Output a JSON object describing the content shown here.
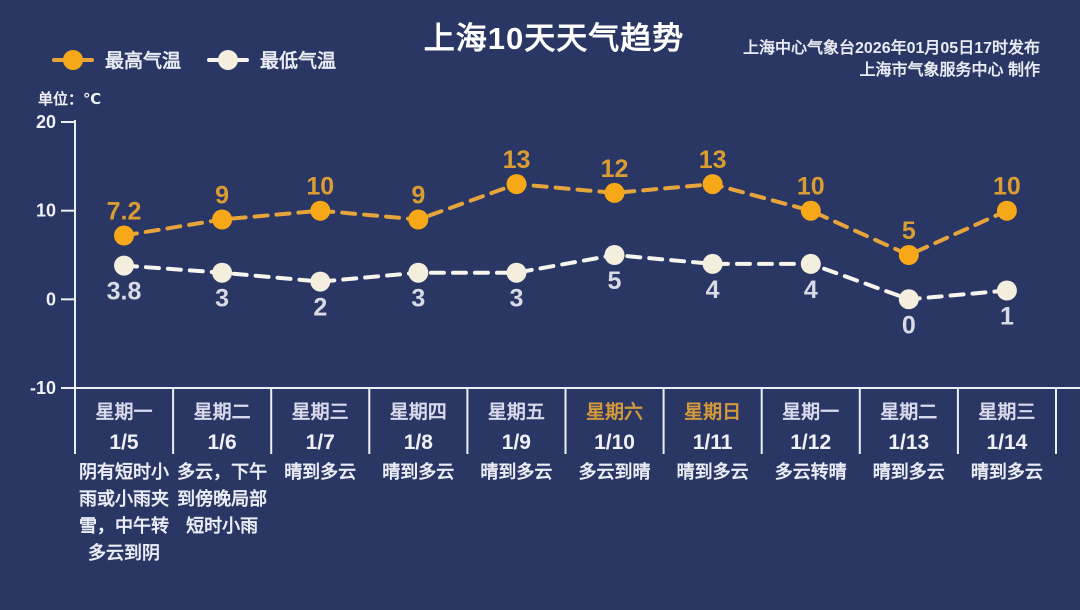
{
  "header": {
    "title": "上海10天天气趋势",
    "publisher_line1": "上海中心气象台2026年01月05日17时发布",
    "publisher_line2": "上海市气象服务中心  制作"
  },
  "legend": {
    "high_label": "最高气温",
    "low_label": "最低气温"
  },
  "unit_label": "单位：℃",
  "colors": {
    "background": "#2A3663",
    "title_text": "#FFFFFF",
    "publisher_text": "#E9EBF4",
    "high_marker": "#F6A819",
    "high_line": "#E5A43C",
    "high_value_text": "#DA9D33",
    "low_marker": "#F4EEDF",
    "low_line": "#F7F5EE",
    "low_value_text": "#D8DBE6",
    "axis": "#EDEFF6",
    "day_text": "#D9DAEE",
    "weekend_text": "#D29A3C",
    "date_text": "#F0F1F8",
    "weather_text": "#EAEDF6"
  },
  "chart_data": {
    "type": "line",
    "title": "上海10天天气趋势",
    "ylabel": "单位：℃",
    "ylim": [
      -10,
      20
    ],
    "yticks": [
      {
        "value": 20,
        "label": "20"
      },
      {
        "value": 10,
        "label": "10"
      },
      {
        "value": 0,
        "label": "0"
      },
      {
        "value": -10,
        "label": "-10"
      }
    ],
    "grid": false,
    "legend_position": "top-left",
    "line_style": "dashed",
    "categories": [
      {
        "day": "星期一",
        "date": "1/5",
        "weekend": false,
        "weather": "阴有短时小雨或小雨夹雪，中午转多云到阴"
      },
      {
        "day": "星期二",
        "date": "1/6",
        "weekend": false,
        "weather": "多云，下午到傍晚局部短时小雨"
      },
      {
        "day": "星期三",
        "date": "1/7",
        "weekend": false,
        "weather": "晴到多云"
      },
      {
        "day": "星期四",
        "date": "1/8",
        "weekend": false,
        "weather": "晴到多云"
      },
      {
        "day": "星期五",
        "date": "1/9",
        "weekend": false,
        "weather": "晴到多云"
      },
      {
        "day": "星期六",
        "date": "1/10",
        "weekend": true,
        "weather": "多云到晴"
      },
      {
        "day": "星期日",
        "date": "1/11",
        "weekend": true,
        "weather": "晴到多云"
      },
      {
        "day": "星期一",
        "date": "1/12",
        "weekend": false,
        "weather": "多云转晴"
      },
      {
        "day": "星期二",
        "date": "1/13",
        "weekend": false,
        "weather": "晴到多云"
      },
      {
        "day": "星期三",
        "date": "1/14",
        "weekend": false,
        "weather": "晴到多云"
      }
    ],
    "series": [
      {
        "name": "最高气温",
        "values": [
          7.2,
          9,
          10,
          9,
          13,
          12,
          13,
          10,
          5,
          10
        ],
        "labels": [
          "7.2",
          "9",
          "10",
          "9",
          "13",
          "12",
          "13",
          "10",
          "5",
          "10"
        ]
      },
      {
        "name": "最低气温",
        "values": [
          3.8,
          3,
          2,
          3,
          3,
          5,
          4,
          4,
          0,
          1
        ],
        "labels": [
          "3.8",
          "3",
          "2",
          "3",
          "3",
          "5",
          "4",
          "4",
          "0",
          "1"
        ]
      }
    ]
  }
}
